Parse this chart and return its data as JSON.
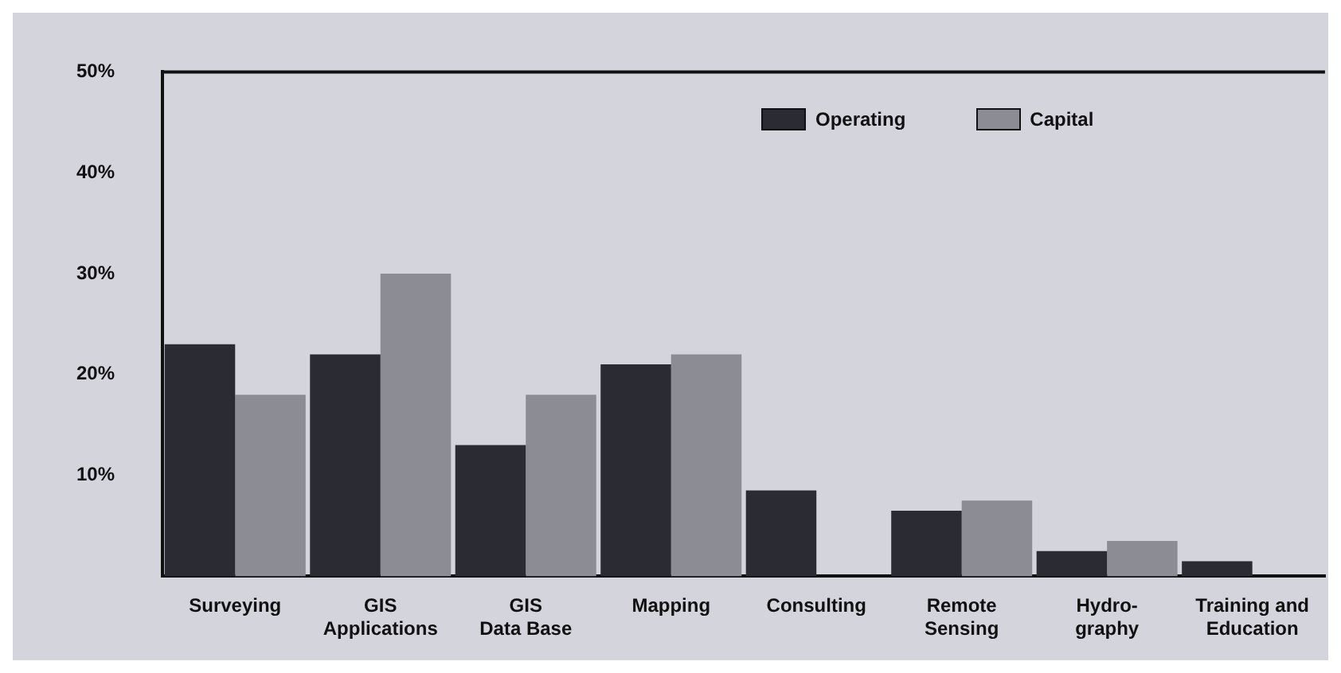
{
  "chart_data": {
    "type": "bar",
    "categories": [
      "Surveying",
      "GIS\nApplications",
      "GIS\nData Base",
      "Mapping",
      "Consulting",
      "Remote\nSensing",
      "Hydro-\ngraphy",
      "Training and\nEducation"
    ],
    "series": [
      {
        "name": "Operating",
        "color": "#2b2b33",
        "values": [
          23,
          22,
          13,
          21,
          8.5,
          6.5,
          2.5,
          1.5
        ]
      },
      {
        "name": "Capital",
        "color": "#8c8c94",
        "values": [
          18,
          30,
          18,
          22,
          0,
          7.5,
          3.5,
          0
        ]
      }
    ],
    "ylim": [
      0,
      50
    ],
    "yticks": [
      {
        "value": 10,
        "label": "10%"
      },
      {
        "value": 20,
        "label": "20%"
      },
      {
        "value": 30,
        "label": "30%"
      },
      {
        "value": 40,
        "label": "40%"
      },
      {
        "value": 50,
        "label": "50%"
      }
    ],
    "grid": false,
    "legend": "top"
  }
}
